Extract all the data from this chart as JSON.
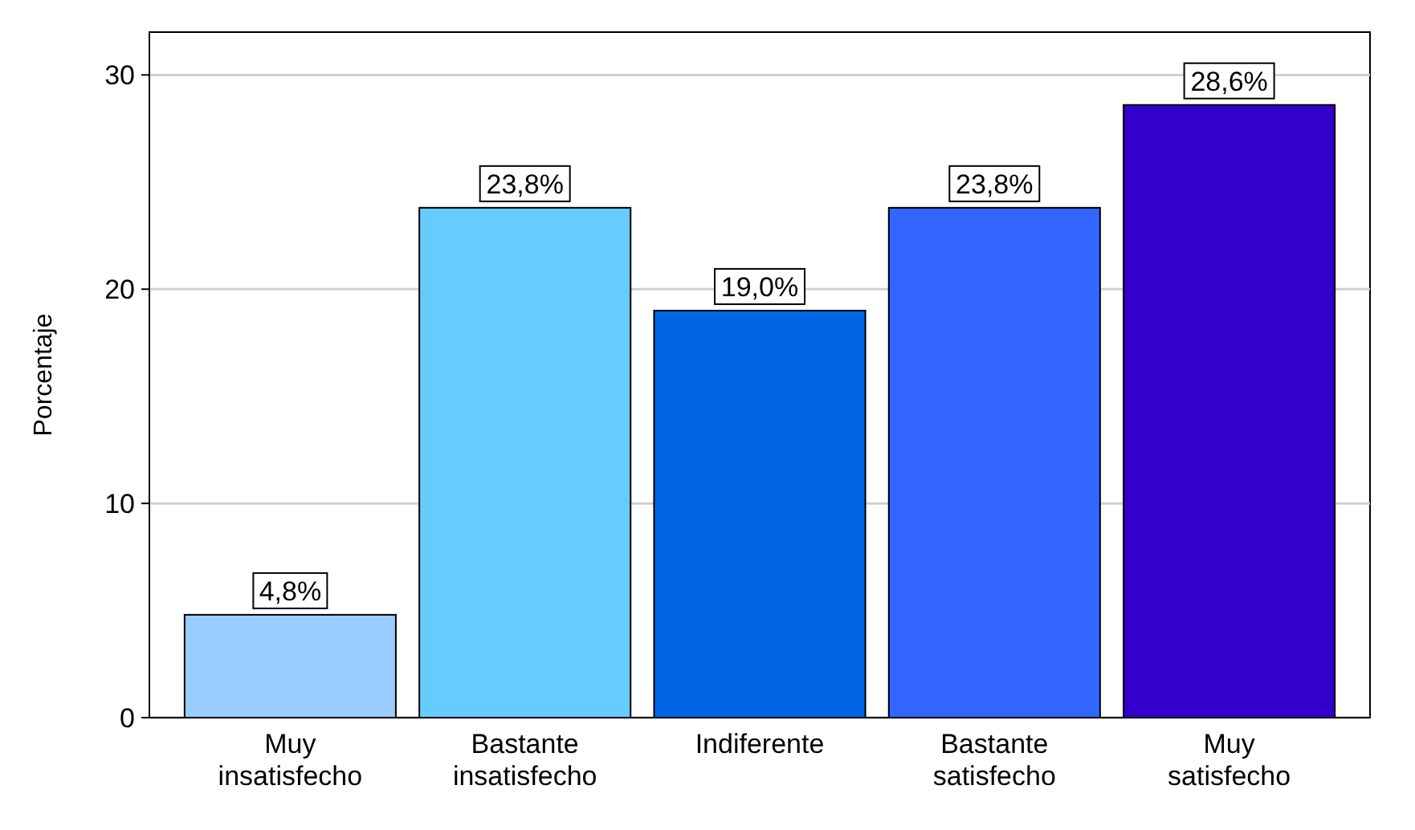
{
  "chart_data": {
    "type": "bar",
    "ylabel": "Porcentaje",
    "categories": [
      "Muy insatisfecho",
      "Bastante insatisfecho",
      "Indiferente",
      "Bastante satisfecho",
      "Muy satisfecho"
    ],
    "values": [
      4.8,
      23.8,
      19.0,
      23.8,
      28.6
    ],
    "colors": [
      "#99ccff",
      "#66ccff",
      "#0066e6",
      "#3366ff",
      "#3300cc"
    ],
    "value_labels": [
      "4,8%",
      "23,8%",
      "19,0%",
      "23,8%",
      "28,6%"
    ],
    "ylim": [
      0,
      32
    ],
    "yticks": [
      0,
      10,
      20,
      30
    ],
    "grid": "y"
  }
}
